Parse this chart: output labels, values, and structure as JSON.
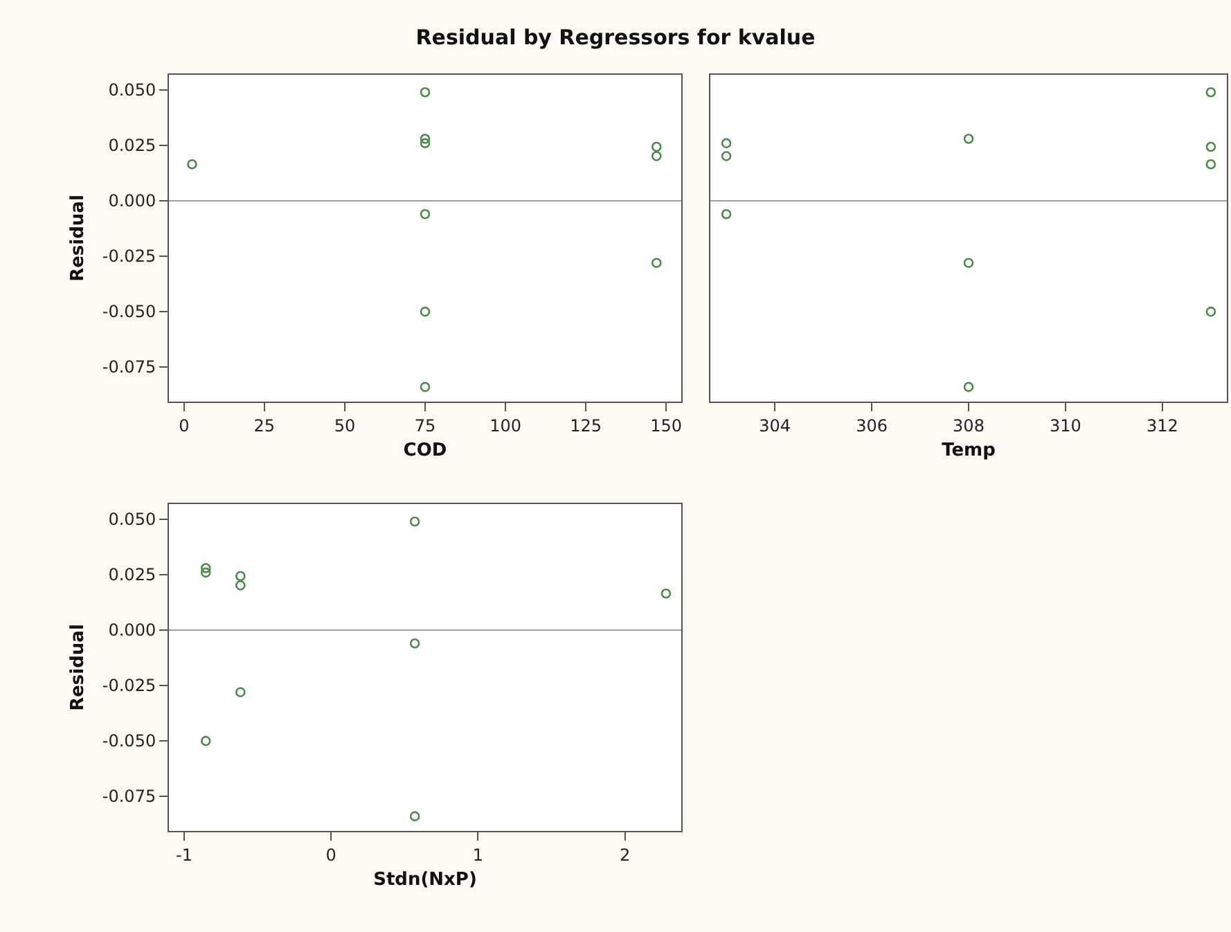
{
  "chart_data": [
    {
      "type": "scatter",
      "title": "Residual by Regressors for kvalue",
      "xlabel": "COD",
      "ylabel": "Residual",
      "x": [
        2.5,
        75,
        75,
        75,
        75,
        75,
        75,
        147,
        147,
        147
      ],
      "values": [
        0.0165,
        0.049,
        0.028,
        0.026,
        -0.006,
        -0.05,
        -0.084,
        0.0244,
        0.0202,
        -0.028
      ],
      "color": "#4a8a4a",
      "marker": "circle",
      "xlim": [
        -4.7,
        154.7
      ],
      "xticks": [
        0,
        25,
        50,
        75,
        100,
        125,
        150
      ],
      "ylim": [
        -0.0906,
        0.0569
      ],
      "yticks": [
        {
          "value": 0.05,
          "label": "0.050"
        },
        0.025,
        {
          "value": 0,
          "label": "0.000"
        },
        -0.025,
        {
          "value": -0.05,
          "label": "-0.050"
        },
        -0.075
      ],
      "ref_lines": [
        {
          "axis": "y",
          "value": 0,
          "color": "#a0a0a0"
        }
      ],
      "grid": false
    },
    {
      "type": "scatter",
      "xlabel": "Temp",
      "x": [
        303,
        303,
        303,
        308,
        308,
        308,
        313,
        313,
        313,
        313
      ],
      "values": [
        0.026,
        0.0202,
        -0.006,
        0.028,
        -0.028,
        -0.084,
        0.049,
        0.0244,
        0.0165,
        -0.05
      ],
      "color": "#4a8a4a",
      "marker": "circle",
      "xlim": [
        302.67,
        313.33
      ],
      "xticks": [
        304,
        306,
        308,
        310,
        312
      ],
      "ylim": [
        -0.0906,
        0.0569
      ],
      "yticks": [
        0.05,
        0.025,
        0,
        -0.025,
        -0.05,
        -0.075
      ],
      "tick_labels": "x",
      "ref_lines": [
        {
          "axis": "y",
          "value": 0,
          "color": "#a0a0a0"
        }
      ],
      "grid": false
    },
    {
      "type": "scatter",
      "xlabel": "Stdn(NxP)",
      "ylabel": "Residual",
      "x": [
        -0.853,
        -0.853,
        -0.853,
        -0.617,
        -0.617,
        -0.617,
        0.57,
        0.57,
        0.57,
        2.28
      ],
      "values": [
        0.028,
        0.026,
        -0.05,
        0.0244,
        0.0202,
        -0.028,
        0.049,
        -0.006,
        -0.084,
        0.0165
      ],
      "color": "#4a8a4a",
      "marker": "circle",
      "xlim": [
        -1.104,
        2.384
      ],
      "xticks": [
        -1,
        0,
        1,
        2
      ],
      "ylim": [
        -0.0906,
        0.0569
      ],
      "yticks": [
        {
          "value": 0.05,
          "label": "0.050"
        },
        0.025,
        {
          "value": 0,
          "label": "0.000"
        },
        -0.025,
        {
          "value": -0.05,
          "label": "-0.050"
        },
        -0.075
      ],
      "ref_lines": [
        {
          "axis": "y",
          "value": 0,
          "color": "#a0a0a0"
        }
      ],
      "grid": false
    }
  ]
}
